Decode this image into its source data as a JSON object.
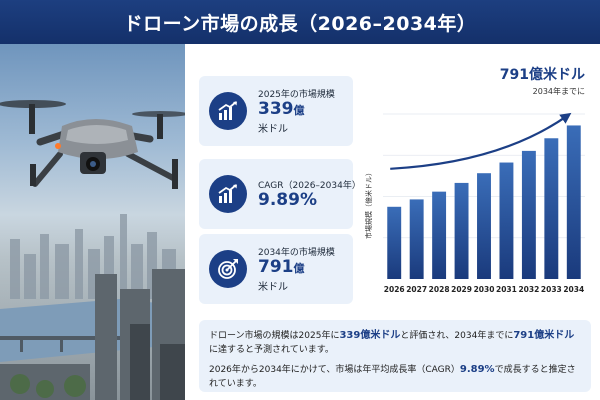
{
  "header": {
    "title": "ドローン市場の成長（2026–2034年）"
  },
  "cards": [
    {
      "label": "2025年の市場規模",
      "value": "339",
      "value_suffix": "億",
      "unit": "米ドル",
      "icon": "growth-chart-icon"
    },
    {
      "label": "CAGR（2026–2034年）",
      "value": "9.89%",
      "value_suffix": "",
      "unit": "",
      "icon": "growth-chart-icon"
    },
    {
      "label": "2034年の市場規模",
      "value": "791",
      "value_suffix": "億",
      "unit": "米ドル",
      "icon": "target-icon"
    }
  ],
  "chart_header": {
    "value": "791億米ドル",
    "note": "2034年までに"
  },
  "chart_data": {
    "type": "bar",
    "title": "",
    "ylabel": "市場規模（億米ドル）",
    "xlabel": "",
    "categories": [
      "2026",
      "2027",
      "2028",
      "2029",
      "2030",
      "2031",
      "2032",
      "2033",
      "2034"
    ],
    "values": [
      372,
      410,
      450,
      495,
      545,
      600,
      660,
      725,
      791
    ],
    "ylim": [
      0,
      850
    ],
    "grid": true,
    "trend_arrow": true,
    "colors": {
      "bar_top": "#3a6db8",
      "bar_bottom": "#1a3a7c",
      "arrow": "#1c3f86"
    }
  },
  "summary": {
    "line1": {
      "a": "ドローン市場の規模は2025年に",
      "b": "339億米ドル",
      "c": "と評価され、2034年までに",
      "d": "791億米ドル",
      "e": "に達すると予測されています。"
    },
    "line2": {
      "a": "2026年から2034年にかけて、市場は年平均成長率（CAGR）",
      "b": "9.89%",
      "c": "で成長すると推定されています。"
    }
  },
  "colors": {
    "header_bg": "#1d3f80",
    "accent": "#1c3f86",
    "card_bg": "#eaf1fa"
  }
}
